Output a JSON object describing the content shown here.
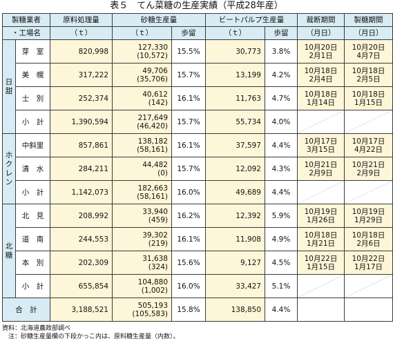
{
  "title": "表５　てん菜糖の生産実績（平成28年産）",
  "headers": {
    "company_factory_1": "製糖業者",
    "company_factory_2": "・工場名",
    "raw": "原料処理量",
    "raw_unit": "（ｔ）",
    "sugar": "砂糖生産量",
    "sugar_unit": "（ｔ）",
    "sugar_yield": "歩留",
    "pulp": "ビートパルプ生産量",
    "pulp_unit": "（ｔ）",
    "pulp_yield": "歩留",
    "harvest": "裁断期間",
    "harvest_unit": "（月日）",
    "mfg": "製糖期間",
    "mfg_unit": "（月日）"
  },
  "groups": [
    {
      "name": "日甜",
      "rows": [
        {
          "factory": "芽　室",
          "raw": "820,998",
          "sugar1": "127,330",
          "sugar2": "(10,572)",
          "sy": "15.5%",
          "pulp": "30,773",
          "py": "3.8%",
          "h1": "10月20日",
          "h2": "2月1日",
          "m1": "10月20日",
          "m2": "4月7日"
        },
        {
          "factory": "美　幌",
          "raw": "317,222",
          "sugar1": "49,706",
          "sugar2": "(35,706)",
          "sy": "15.7%",
          "pulp": "13,199",
          "py": "4.2%",
          "h1": "10月18日",
          "h2": "2月4日",
          "m1": "10月18日",
          "m2": "2月5日"
        },
        {
          "factory": "士　別",
          "raw": "252,374",
          "sugar1": "40,612",
          "sugar2": "(142)",
          "sy": "16.1%",
          "pulp": "11,763",
          "py": "4.7%",
          "h1": "10月18日",
          "h2": "1月14日",
          "m1": "10月18日",
          "m2": "1月15日"
        },
        {
          "factory": "小　計",
          "raw": "1,390,594",
          "sugar1": "217,649",
          "sugar2": "(46,420)",
          "sy": "15.7%",
          "pulp": "55,734",
          "py": "4.0%",
          "h1": "",
          "h2": "",
          "m1": "",
          "m2": ""
        }
      ]
    },
    {
      "name": "ホクレン",
      "rows": [
        {
          "factory": "中斜里",
          "raw": "857,861",
          "sugar1": "138,182",
          "sugar2": "(58,161)",
          "sy": "16.1%",
          "pulp": "37,597",
          "py": "4.4%",
          "h1": "10月17日",
          "h2": "3月15日",
          "m1": "10月17日",
          "m2": "4月22日"
        },
        {
          "factory": "清　水",
          "raw": "284,211",
          "sugar1": "44,482",
          "sugar2": "(0)",
          "sy": "15.7%",
          "pulp": "12,092",
          "py": "4.3%",
          "h1": "10月21日",
          "h2": "2月9日",
          "m1": "10月21日",
          "m2": "2月9日"
        },
        {
          "factory": "小　計",
          "raw": "1,142,073",
          "sugar1": "182,663",
          "sugar2": "(58,161)",
          "sy": "16.0%",
          "pulp": "49,689",
          "py": "4.4%",
          "h1": "",
          "h2": "",
          "m1": "",
          "m2": ""
        }
      ]
    },
    {
      "name": "北糖",
      "rows": [
        {
          "factory": "北　見",
          "raw": "208,992",
          "sugar1": "33,940",
          "sugar2": "(459)",
          "sy": "16.2%",
          "pulp": "12,392",
          "py": "5.9%",
          "h1": "10月19日",
          "h2": "1月26日",
          "m1": "10月19日",
          "m2": "1月29日"
        },
        {
          "factory": "道　南",
          "raw": "244,553",
          "sugar1": "39,302",
          "sugar2": "(219)",
          "sy": "16.1%",
          "pulp": "11,908",
          "py": "4.9%",
          "h1": "10月18日",
          "h2": "1月21日",
          "m1": "10月18日",
          "m2": "2月6日"
        },
        {
          "factory": "本　別",
          "raw": "202,309",
          "sugar1": "31,638",
          "sugar2": "(324)",
          "sy": "15.6%",
          "pulp": "9,127",
          "py": "4.5%",
          "h1": "10月22日",
          "h2": "1月15日",
          "m1": "10月22日",
          "m2": "1月17日"
        },
        {
          "factory": "小　計",
          "raw": "655,854",
          "sugar1": "104,880",
          "sugar2": "(1,002)",
          "sy": "16.0%",
          "pulp": "33,427",
          "py": "5.1%",
          "h1": "",
          "h2": "",
          "m1": "",
          "m2": ""
        }
      ]
    }
  ],
  "total": {
    "label": "合　計",
    "raw": "3,188,521",
    "sugar1": "505,193",
    "sugar2": "(105,583)",
    "sy": "15.8%",
    "pulp": "138,850",
    "py": "4.4%"
  },
  "notes": {
    "source": "資料：北海道農政部調べ",
    "note": "　注：砂糖生産量欄の下段かっこ内は、原料糖生産量（内数）。"
  }
}
